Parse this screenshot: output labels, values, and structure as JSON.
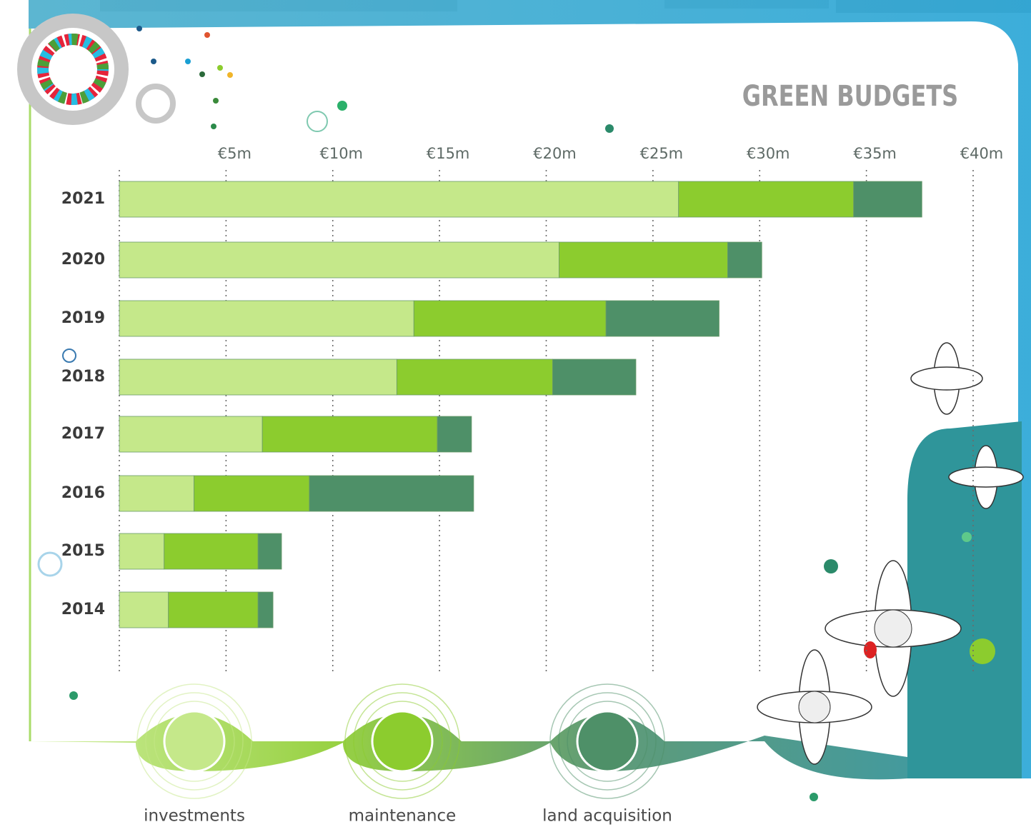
{
  "chart_data": {
    "type": "stacked-bar-horizontal",
    "title": "GREEN BUDGETS",
    "categories": [
      "2021",
      "2020",
      "2019",
      "2018",
      "2017",
      "2016",
      "2015",
      "2014"
    ],
    "series": [
      {
        "name": "investments",
        "color": "#c5e88a",
        "values": [
          26.2,
          20.6,
          13.8,
          13.0,
          6.7,
          3.5,
          2.1,
          2.3
        ]
      },
      {
        "name": "maintenance",
        "color": "#8ccc2e",
        "values": [
          8.2,
          7.9,
          9.0,
          7.3,
          8.2,
          5.4,
          4.4,
          4.2
        ]
      },
      {
        "name": "land acquisition",
        "color": "#4e9068",
        "values": [
          3.2,
          1.6,
          5.3,
          3.9,
          1.6,
          7.7,
          1.1,
          0.7
        ]
      }
    ],
    "xlim": [
      0,
      40
    ],
    "xticks": [
      {
        "value": 5,
        "label": "€5m"
      },
      {
        "value": 10,
        "label": "€10m"
      },
      {
        "value": 15,
        "label": "€15m"
      },
      {
        "value": 20,
        "label": "€20m"
      },
      {
        "value": 25,
        "label": "€25m"
      },
      {
        "value": 30,
        "label": "€30m"
      },
      {
        "value": 35,
        "label": "€35m"
      },
      {
        "value": 40,
        "label": "€40m"
      }
    ],
    "grid": true
  }
}
